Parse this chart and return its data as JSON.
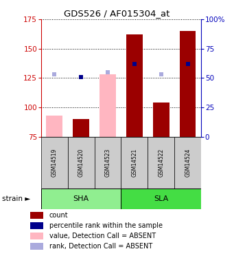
{
  "title": "GDS526 / AF015304_at",
  "samples": [
    "GSM14519",
    "GSM14520",
    "GSM14523",
    "GSM14521",
    "GSM14522",
    "GSM14524"
  ],
  "ylim_left": [
    75,
    175
  ],
  "ylim_right": [
    0,
    100
  ],
  "yticks_left": [
    75,
    100,
    125,
    150,
    175
  ],
  "yticks_right": [
    0,
    25,
    50,
    75,
    100
  ],
  "bar_bottom": 75,
  "bar_values": [
    93,
    90,
    128,
    162,
    104,
    165
  ],
  "bar_absent": [
    true,
    false,
    true,
    false,
    false,
    false
  ],
  "rank_values": [
    128,
    126,
    130,
    137,
    128,
    137
  ],
  "rank_absent": [
    true,
    false,
    true,
    false,
    true,
    false
  ],
  "bar_color_present": "#9B0000",
  "bar_color_absent": "#FFB6C1",
  "rank_color_present": "#00008B",
  "rank_color_absent": "#AAAADD",
  "left_label_color": "#CC0000",
  "right_label_color": "#0000BB",
  "sample_box_color": "#CCCCCC",
  "sha_group_color": "#90EE90",
  "sla_group_color": "#44DD44",
  "legend_items": [
    {
      "label": "count",
      "color": "#9B0000"
    },
    {
      "label": "percentile rank within the sample",
      "color": "#00008B"
    },
    {
      "label": "value, Detection Call = ABSENT",
      "color": "#FFB6C1"
    },
    {
      "label": "rank, Detection Call = ABSENT",
      "color": "#AAAADD"
    }
  ]
}
